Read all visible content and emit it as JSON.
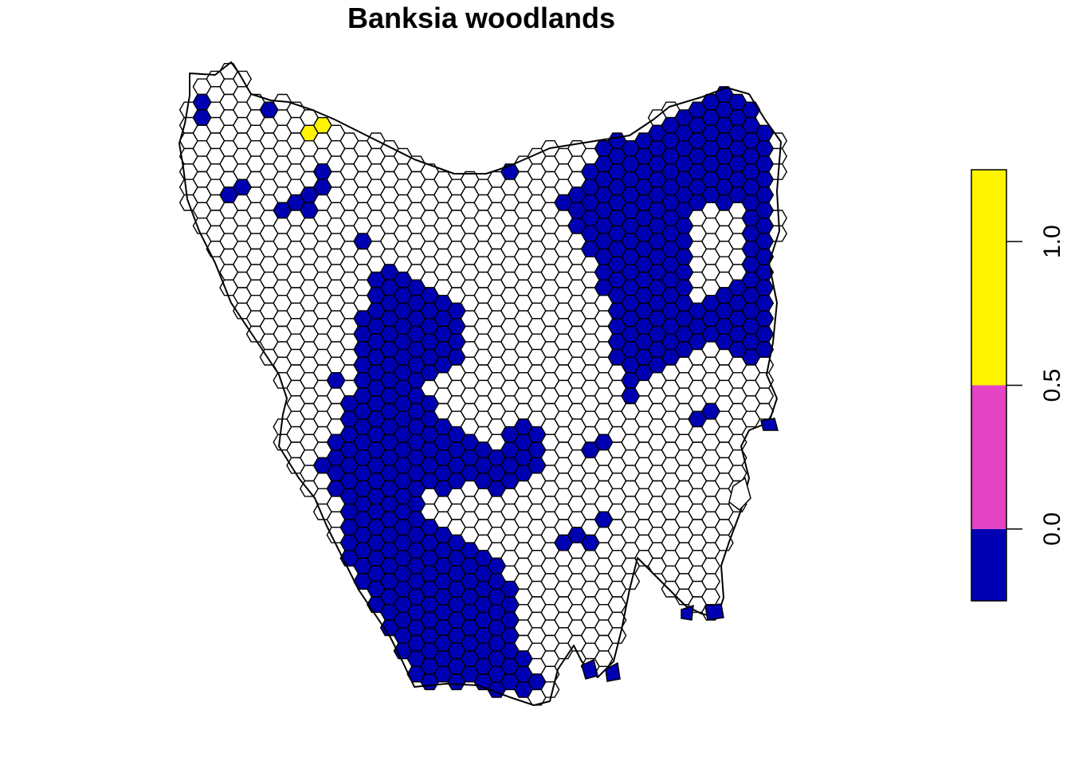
{
  "title": "Banksia woodlands",
  "legend": {
    "classes": [
      {
        "from": -0.25,
        "to": 0.0,
        "color": "#0000B3"
      },
      {
        "from": 0.0,
        "to": 0.5,
        "color": "#E444C4"
      },
      {
        "from": 0.5,
        "to": 1.25,
        "color": "#FFF500"
      }
    ],
    "ticks": [
      {
        "value": 0.0,
        "label": "0.0"
      },
      {
        "value": 0.5,
        "label": "0.5"
      },
      {
        "value": 1.0,
        "label": "1.0"
      }
    ]
  },
  "map": {
    "cell_colors": {
      "zero": "#0000B3",
      "mid": "#E444C4",
      "one": "#FFF500",
      "none": "#FFFFFF"
    }
  }
}
